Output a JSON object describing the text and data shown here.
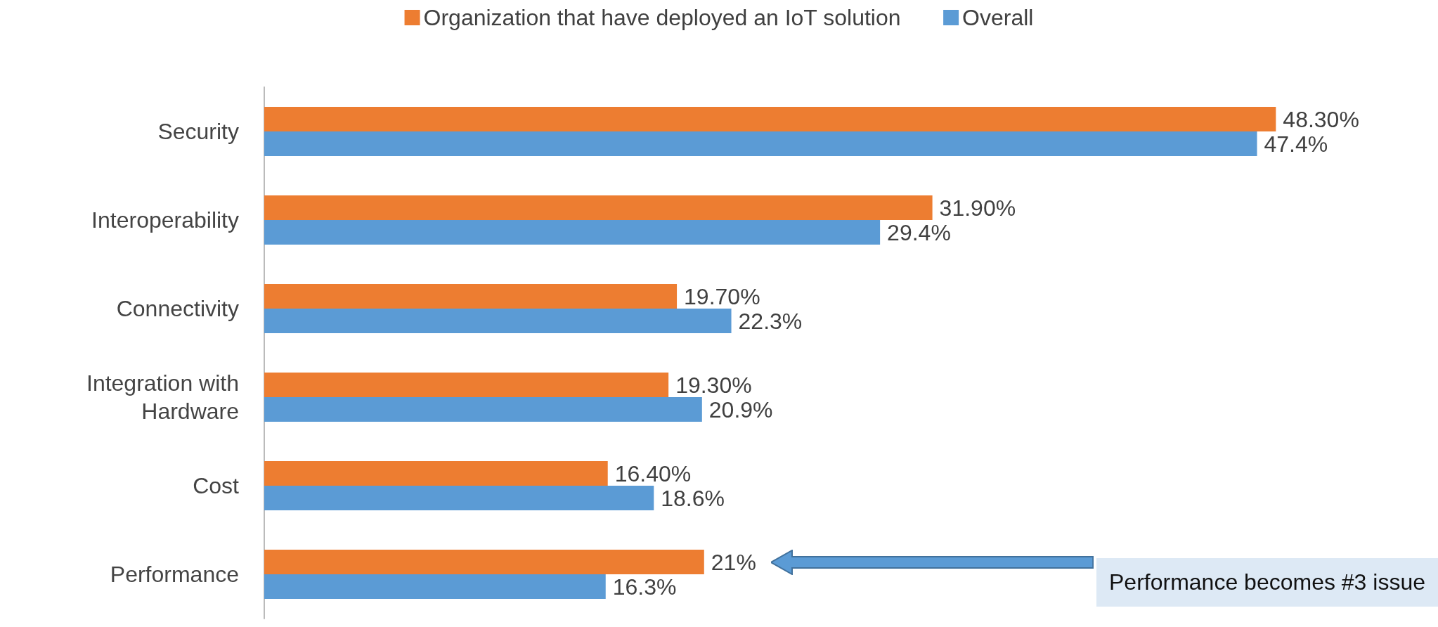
{
  "chart_data": {
    "type": "bar",
    "orientation": "horizontal",
    "categories": [
      "Security",
      "Interoperability",
      "Connectivity",
      "Integration with\nHardware",
      "Cost",
      "Performance"
    ],
    "series": [
      {
        "name": "Organization that have deployed an IoT solution",
        "color": "#ed7d31",
        "values": [
          48.3,
          31.9,
          19.7,
          19.3,
          16.4,
          21
        ],
        "value_labels": [
          "48.30%",
          "31.90%",
          "19.70%",
          "19.30%",
          "16.40%",
          "21%"
        ]
      },
      {
        "name": "Overall",
        "color": "#5b9bd5",
        "values": [
          47.4,
          29.4,
          22.3,
          20.9,
          18.6,
          16.3
        ],
        "value_labels": [
          "47.4%",
          "29.4%",
          "22.3%",
          "20.9%",
          "18.6%",
          "16.3%"
        ]
      }
    ],
    "legend": "top",
    "annotations": [
      "Performance becomes #3 issue"
    ]
  }
}
